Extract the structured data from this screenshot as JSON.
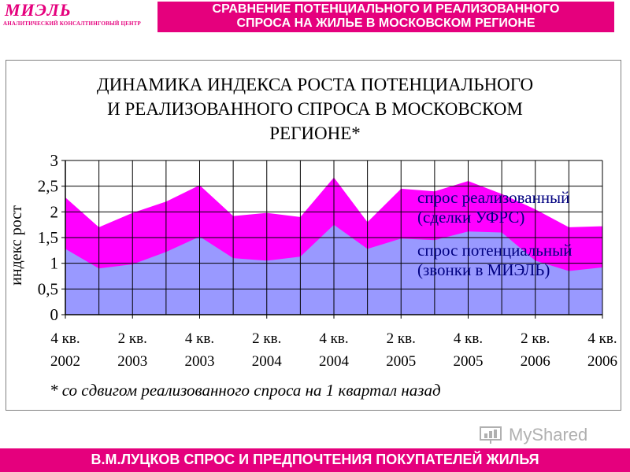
{
  "header": {
    "logo": "МИЭЛЬ",
    "logo_subtitle": "АНАЛИТИЧЕСКИЙ КОНСАЛТИНГОВЫЙ ЦЕНТР",
    "title_line1": "СРАВНЕНИЕ ПОТЕНЦИАЛЬНОГО И РЕАЛИЗОВАННОГО",
    "title_line2": "СПРОСА НА ЖИЛЬЕ В МОСКОВСКОМ РЕГИОНЕ"
  },
  "chart_data": {
    "type": "area",
    "title_line1": "ДИНАМИКА ИНДЕКСА РОСТА ПОТЕНЦИАЛЬНОГО",
    "title_line2": "И РЕАЛИЗОВАННОГО СПРОСА В МОСКОВСКОМ",
    "title_line3": "РЕГИОНЕ*",
    "ylabel": "индекс рост",
    "ylim": [
      0,
      3
    ],
    "yticks": [
      "0",
      "0,5",
      "1",
      "1,5",
      "2",
      "2,5",
      "3"
    ],
    "x_tick_labels": [
      {
        "q": "4 кв.",
        "year": "2002"
      },
      {
        "q": "2 кв.",
        "year": "2003"
      },
      {
        "q": "4 кв.",
        "year": "2003"
      },
      {
        "q": "2 кв.",
        "year": "2004"
      },
      {
        "q": "4 кв.",
        "year": "2004"
      },
      {
        "q": "2 кв.",
        "year": "2005"
      },
      {
        "q": "4 кв.",
        "year": "2005"
      },
      {
        "q": "2 кв.",
        "year": "2006"
      },
      {
        "q": "4 кв.",
        "year": "2006"
      }
    ],
    "x_periods": 17,
    "series": [
      {
        "name_line1": "спрос реализованный",
        "name_line2": "(сделки УФРС)",
        "color": "#ff00ff",
        "values": [
          2.28,
          1.7,
          1.98,
          2.2,
          2.52,
          1.92,
          1.98,
          1.9,
          2.67,
          1.8,
          2.45,
          2.4,
          2.6,
          2.35,
          2.05,
          1.7,
          1.72
        ]
      },
      {
        "name_line1": "спрос потенциальный",
        "name_line2": "(звонки в МИЭЛЬ)",
        "color": "#9999ff",
        "values": [
          1.28,
          0.9,
          0.98,
          1.22,
          1.52,
          1.1,
          1.05,
          1.13,
          1.75,
          1.28,
          1.48,
          1.45,
          1.62,
          1.6,
          1.05,
          0.85,
          0.92
        ]
      }
    ],
    "grid": true,
    "footnote": "* со сдвигом реализованного спроса на 1 квартал назад"
  },
  "footer": {
    "text": "В.М.ЛУЦКОВ СПРОС И ПРЕДПОЧТЕНИЯ ПОКУПАТЕЛЕЙ ЖИЛЬЯ"
  },
  "watermark": {
    "text": "MyShared"
  },
  "colors": {
    "accent": "#e5007d",
    "grid": "#000000"
  }
}
